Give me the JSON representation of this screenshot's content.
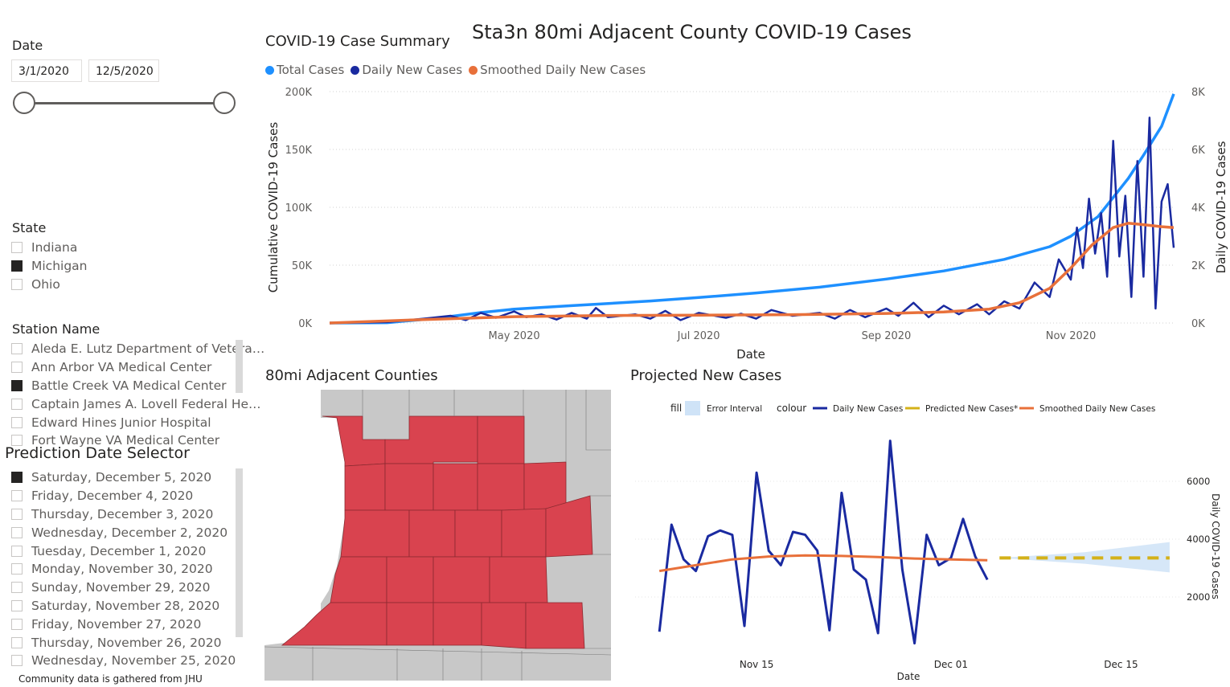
{
  "page_title": "Sta3n 80mi Adjacent County COVID-19 Cases",
  "date_slicer": {
    "title": "Date",
    "start": "3/1/2020",
    "end": "12/5/2020"
  },
  "state_slicer": {
    "title": "State",
    "items": [
      {
        "label": "Indiana",
        "checked": false
      },
      {
        "label": "Michigan",
        "checked": true
      },
      {
        "label": "Ohio",
        "checked": false
      }
    ]
  },
  "station_slicer": {
    "title": "Station Name",
    "items": [
      {
        "label": "Aleda E. Lutz Department of Vetera…",
        "checked": false
      },
      {
        "label": "Ann Arbor VA Medical Center",
        "checked": false
      },
      {
        "label": "Battle Creek VA Medical Center",
        "checked": true
      },
      {
        "label": "Captain James A. Lovell Federal He…",
        "checked": false
      },
      {
        "label": "Edward Hines Junior Hospital",
        "checked": false
      },
      {
        "label": "Fort Wayne VA Medical Center",
        "checked": false
      }
    ]
  },
  "prediction_slicer": {
    "title": "Prediction Date Selector",
    "items": [
      {
        "label": "Saturday, December 5, 2020",
        "checked": true
      },
      {
        "label": "Friday, December 4, 2020",
        "checked": false
      },
      {
        "label": "Thursday, December 3, 2020",
        "checked": false
      },
      {
        "label": "Wednesday, December 2, 2020",
        "checked": false
      },
      {
        "label": "Tuesday, December 1, 2020",
        "checked": false
      },
      {
        "label": "Monday, November 30, 2020",
        "checked": false
      },
      {
        "label": "Sunday, November 29, 2020",
        "checked": false
      },
      {
        "label": "Saturday, November 28, 2020",
        "checked": false
      },
      {
        "label": "Friday, November 27, 2020",
        "checked": false
      },
      {
        "label": "Thursday, November 26, 2020",
        "checked": false
      },
      {
        "label": "Wednesday, November 25, 2020",
        "checked": false
      }
    ]
  },
  "footer_note": "Community data is gathered from JHU",
  "map": {
    "title": "80mi Adjacent Counties",
    "selected_color": "#d9434f",
    "other_color": "#c8c8c8"
  },
  "colors": {
    "total": "#1e90ff",
    "daily": "#1a2aa0",
    "smoothed": "#e8703a",
    "predicted": "#d4b118",
    "error": "#cfe3f7"
  },
  "chart_data": [
    {
      "type": "line",
      "title": "COVID-19 Case Summary",
      "xlabel": "Date",
      "ylabel": "Cumulative COVID-19 Cases",
      "y2label": "Daily COVID-19 Cases",
      "legend_position": "top-left",
      "grid": true,
      "xlim": [
        "2020-03-01",
        "2020-12-05"
      ],
      "ylim": [
        0,
        200000
      ],
      "y2lim": [
        0,
        8000
      ],
      "x_ticks": [
        {
          "date": "2020-05-01",
          "label": "May 2020"
        },
        {
          "date": "2020-07-01",
          "label": "Jul 2020"
        },
        {
          "date": "2020-09-01",
          "label": "Sep 2020"
        },
        {
          "date": "2020-11-01",
          "label": "Nov 2020"
        }
      ],
      "y_ticks": [
        {
          "value": 0,
          "label": "0K"
        },
        {
          "value": 50000,
          "label": "50K"
        },
        {
          "value": 100000,
          "label": "100K"
        },
        {
          "value": 150000,
          "label": "150K"
        },
        {
          "value": 200000,
          "label": "200K"
        }
      ],
      "y2_ticks": [
        {
          "value": 0,
          "label": "0K"
        },
        {
          "value": 2000,
          "label": "2K"
        },
        {
          "value": 4000,
          "label": "4K"
        },
        {
          "value": 6000,
          "label": "6K"
        },
        {
          "value": 8000,
          "label": "8K"
        }
      ],
      "series": [
        {
          "name": "Total Cases",
          "axis": "left",
          "color": "#1e90ff",
          "points": [
            [
              "2020-03-01",
              0
            ],
            [
              "2020-03-20",
              300
            ],
            [
              "2020-04-05",
              4000
            ],
            [
              "2020-04-20",
              9000
            ],
            [
              "2020-05-01",
              12000
            ],
            [
              "2020-05-20",
              15000
            ],
            [
              "2020-06-15",
              19000
            ],
            [
              "2020-07-01",
              22000
            ],
            [
              "2020-07-20",
              26000
            ],
            [
              "2020-08-10",
              31000
            ],
            [
              "2020-09-01",
              38000
            ],
            [
              "2020-09-20",
              45000
            ],
            [
              "2020-10-10",
              55000
            ],
            [
              "2020-10-25",
              66000
            ],
            [
              "2020-11-01",
              75000
            ],
            [
              "2020-11-10",
              92000
            ],
            [
              "2020-11-20",
              125000
            ],
            [
              "2020-11-25",
              145000
            ],
            [
              "2020-12-01",
              170000
            ],
            [
              "2020-12-05",
              198000
            ]
          ]
        },
        {
          "name": "Daily New Cases",
          "axis": "right",
          "color": "#1a2aa0",
          "points": [
            [
              "2020-03-01",
              0
            ],
            [
              "2020-03-20",
              30
            ],
            [
              "2020-04-01",
              150
            ],
            [
              "2020-04-10",
              250
            ],
            [
              "2020-04-15",
              100
            ],
            [
              "2020-04-20",
              350
            ],
            [
              "2020-04-25",
              180
            ],
            [
              "2020-05-01",
              400
            ],
            [
              "2020-05-05",
              200
            ],
            [
              "2020-05-10",
              300
            ],
            [
              "2020-05-15",
              120
            ],
            [
              "2020-05-20",
              350
            ],
            [
              "2020-05-25",
              150
            ],
            [
              "2020-05-28",
              520
            ],
            [
              "2020-06-01",
              200
            ],
            [
              "2020-06-10",
              300
            ],
            [
              "2020-06-15",
              150
            ],
            [
              "2020-06-20",
              420
            ],
            [
              "2020-06-25",
              100
            ],
            [
              "2020-07-01",
              350
            ],
            [
              "2020-07-10",
              180
            ],
            [
              "2020-07-15",
              320
            ],
            [
              "2020-07-20",
              150
            ],
            [
              "2020-07-25",
              450
            ],
            [
              "2020-08-01",
              250
            ],
            [
              "2020-08-10",
              350
            ],
            [
              "2020-08-15",
              150
            ],
            [
              "2020-08-20",
              450
            ],
            [
              "2020-08-25",
              200
            ],
            [
              "2020-09-01",
              500
            ],
            [
              "2020-09-05",
              250
            ],
            [
              "2020-09-10",
              700
            ],
            [
              "2020-09-15",
              200
            ],
            [
              "2020-09-20",
              600
            ],
            [
              "2020-09-25",
              300
            ],
            [
              "2020-10-01",
              650
            ],
            [
              "2020-10-05",
              300
            ],
            [
              "2020-10-10",
              750
            ],
            [
              "2020-10-15",
              500
            ],
            [
              "2020-10-20",
              1400
            ],
            [
              "2020-10-25",
              900
            ],
            [
              "2020-10-28",
              2200
            ],
            [
              "2020-11-01",
              1500
            ],
            [
              "2020-11-03",
              3300
            ],
            [
              "2020-11-05",
              1900
            ],
            [
              "2020-11-07",
              4300
            ],
            [
              "2020-11-09",
              2400
            ],
            [
              "2020-11-11",
              3800
            ],
            [
              "2020-11-13",
              1600
            ],
            [
              "2020-11-15",
              6300
            ],
            [
              "2020-11-17",
              2300
            ],
            [
              "2020-11-19",
              4400
            ],
            [
              "2020-11-21",
              900
            ],
            [
              "2020-11-23",
              5600
            ],
            [
              "2020-11-25",
              1600
            ],
            [
              "2020-11-27",
              7100
            ],
            [
              "2020-11-29",
              500
            ],
            [
              "2020-12-01",
              4200
            ],
            [
              "2020-12-03",
              4800
            ],
            [
              "2020-12-05",
              2600
            ]
          ]
        },
        {
          "name": "Smoothed Daily New Cases",
          "axis": "right",
          "color": "#e8703a",
          "points": [
            [
              "2020-03-01",
              0
            ],
            [
              "2020-04-01",
              120
            ],
            [
              "2020-05-01",
              220
            ],
            [
              "2020-06-01",
              260
            ],
            [
              "2020-07-01",
              270
            ],
            [
              "2020-08-01",
              290
            ],
            [
              "2020-09-01",
              330
            ],
            [
              "2020-09-20",
              380
            ],
            [
              "2020-10-05",
              480
            ],
            [
              "2020-10-15",
              700
            ],
            [
              "2020-10-25",
              1200
            ],
            [
              "2020-11-01",
              1900
            ],
            [
              "2020-11-08",
              2700
            ],
            [
              "2020-11-15",
              3300
            ],
            [
              "2020-11-20",
              3450
            ],
            [
              "2020-11-25",
              3400
            ],
            [
              "2020-12-01",
              3330
            ],
            [
              "2020-12-05",
              3300
            ]
          ]
        }
      ]
    },
    {
      "type": "line",
      "title": "Projected New Cases",
      "xlabel": "Date",
      "ylabel": "Daily COVID-19 Cases",
      "legend_position": "top",
      "legend_fill_label": "fill",
      "legend_colour_label": "colour",
      "grid": true,
      "xlim": [
        "2020-11-05",
        "2020-12-20"
      ],
      "ylim": [
        0,
        7500
      ],
      "x_ticks": [
        {
          "date": "2020-11-15",
          "label": "Nov 15"
        },
        {
          "date": "2020-12-01",
          "label": "Dec 01"
        },
        {
          "date": "2020-12-15",
          "label": "Dec 15"
        }
      ],
      "y_ticks": [
        {
          "value": 2000,
          "label": "2000"
        },
        {
          "value": 4000,
          "label": "4000"
        },
        {
          "value": 6000,
          "label": "6000"
        }
      ],
      "series": [
        {
          "name": "Daily New Cases",
          "color": "#1a2aa0",
          "points": [
            [
              "2020-11-07",
              800
            ],
            [
              "2020-11-08",
              4500
            ],
            [
              "2020-11-09",
              3300
            ],
            [
              "2020-11-10",
              2900
            ],
            [
              "2020-11-11",
              4100
            ],
            [
              "2020-11-12",
              4300
            ],
            [
              "2020-11-13",
              4150
            ],
            [
              "2020-11-14",
              1000
            ],
            [
              "2020-11-15",
              6300
            ],
            [
              "2020-11-16",
              3600
            ],
            [
              "2020-11-17",
              3100
            ],
            [
              "2020-11-18",
              4250
            ],
            [
              "2020-11-19",
              4150
            ],
            [
              "2020-11-20",
              3600
            ],
            [
              "2020-11-21",
              850
            ],
            [
              "2020-11-22",
              5600
            ],
            [
              "2020-11-23",
              2950
            ],
            [
              "2020-11-24",
              2600
            ],
            [
              "2020-11-25",
              750
            ],
            [
              "2020-11-26",
              7400
            ],
            [
              "2020-11-27",
              2950
            ],
            [
              "2020-11-28",
              400
            ],
            [
              "2020-11-29",
              4150
            ],
            [
              "2020-11-30",
              3100
            ],
            [
              "2020-12-01",
              3350
            ],
            [
              "2020-12-02",
              4700
            ],
            [
              "2020-12-03",
              3400
            ],
            [
              "2020-12-04",
              2600
            ]
          ]
        },
        {
          "name": "Predicted New Cases*",
          "color": "#d4b118",
          "dashed": true,
          "points": [
            [
              "2020-12-05",
              3350
            ],
            [
              "2020-12-19",
              3350
            ]
          ]
        },
        {
          "name": "Smoothed Daily New Cases",
          "color": "#e8703a",
          "points": [
            [
              "2020-11-07",
              2900
            ],
            [
              "2020-11-10",
              3100
            ],
            [
              "2020-11-13",
              3300
            ],
            [
              "2020-11-16",
              3400
            ],
            [
              "2020-11-19",
              3440
            ],
            [
              "2020-11-22",
              3420
            ],
            [
              "2020-11-25",
              3380
            ],
            [
              "2020-11-28",
              3330
            ],
            [
              "2020-12-01",
              3300
            ],
            [
              "2020-12-04",
              3270
            ]
          ]
        }
      ],
      "error_interval": {
        "name": "Error Interval",
        "color": "#cfe3f7",
        "upper": [
          [
            "2020-12-05",
            3350
          ],
          [
            "2020-12-12",
            3550
          ],
          [
            "2020-12-19",
            3900
          ]
        ],
        "lower": [
          [
            "2020-12-05",
            3350
          ],
          [
            "2020-12-12",
            3150
          ],
          [
            "2020-12-19",
            2850
          ]
        ]
      }
    }
  ]
}
